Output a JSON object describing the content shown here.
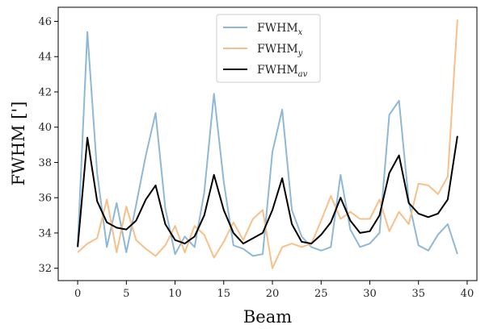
{
  "chart_data": {
    "type": "line",
    "xlabel": "Beam",
    "ylabel": "FWHM [']",
    "xlim": [
      -2,
      41
    ],
    "ylim": [
      31.3,
      46.8
    ],
    "xticks": [
      0,
      5,
      10,
      15,
      20,
      25,
      30,
      35,
      40
    ],
    "yticks": [
      32,
      34,
      36,
      38,
      40,
      42,
      44,
      46
    ],
    "grid": false,
    "legend_position": "top-center",
    "x": [
      0,
      1,
      2,
      3,
      4,
      5,
      6,
      7,
      8,
      9,
      10,
      11,
      12,
      13,
      14,
      15,
      16,
      17,
      18,
      19,
      20,
      21,
      22,
      23,
      24,
      25,
      26,
      27,
      28,
      29,
      30,
      31,
      32,
      33,
      34,
      35,
      36,
      37,
      38,
      39
    ],
    "series": [
      {
        "name": "FWHM",
        "subscript": "x",
        "color": "#8fb8d6",
        "values": [
          33.3,
          45.4,
          37.4,
          33.2,
          35.7,
          32.9,
          35.6,
          38.4,
          40.8,
          35.4,
          32.8,
          33.8,
          33.2,
          36.3,
          41.9,
          36.9,
          33.3,
          33.1,
          32.7,
          32.8,
          38.6,
          41.0,
          35.3,
          33.8,
          33.2,
          33.0,
          33.2,
          37.3,
          34.2,
          33.2,
          33.4,
          34.0,
          40.7,
          41.5,
          35.8,
          33.3,
          33.0,
          33.9,
          34.5,
          32.8
        ]
      },
      {
        "name": "FWHM",
        "subscript": "y",
        "color": "#f7c08a",
        "values": [
          32.9,
          33.4,
          33.7,
          35.9,
          32.9,
          35.5,
          33.6,
          33.1,
          32.7,
          33.3,
          34.4,
          32.9,
          34.4,
          33.9,
          32.6,
          33.5,
          34.6,
          33.6,
          34.8,
          35.3,
          32.0,
          33.2,
          33.4,
          33.2,
          33.4,
          34.7,
          36.1,
          34.8,
          35.2,
          34.8,
          34.8,
          35.9,
          34.1,
          35.2,
          34.5,
          36.8,
          36.7,
          36.2,
          37.2,
          46.1
        ]
      },
      {
        "name": "FWHM",
        "subscript": "av",
        "color": "#000000",
        "values": [
          33.2,
          39.4,
          35.8,
          34.6,
          34.3,
          34.2,
          34.7,
          35.9,
          36.7,
          34.5,
          33.6,
          33.4,
          33.8,
          35.0,
          37.3,
          35.3,
          34.0,
          33.4,
          33.7,
          34.0,
          35.3,
          37.1,
          34.5,
          33.5,
          33.4,
          33.9,
          34.6,
          36.0,
          34.7,
          34.0,
          34.1,
          35.0,
          37.4,
          38.4,
          35.7,
          35.1,
          34.9,
          35.1,
          35.9,
          39.5
        ]
      }
    ]
  }
}
